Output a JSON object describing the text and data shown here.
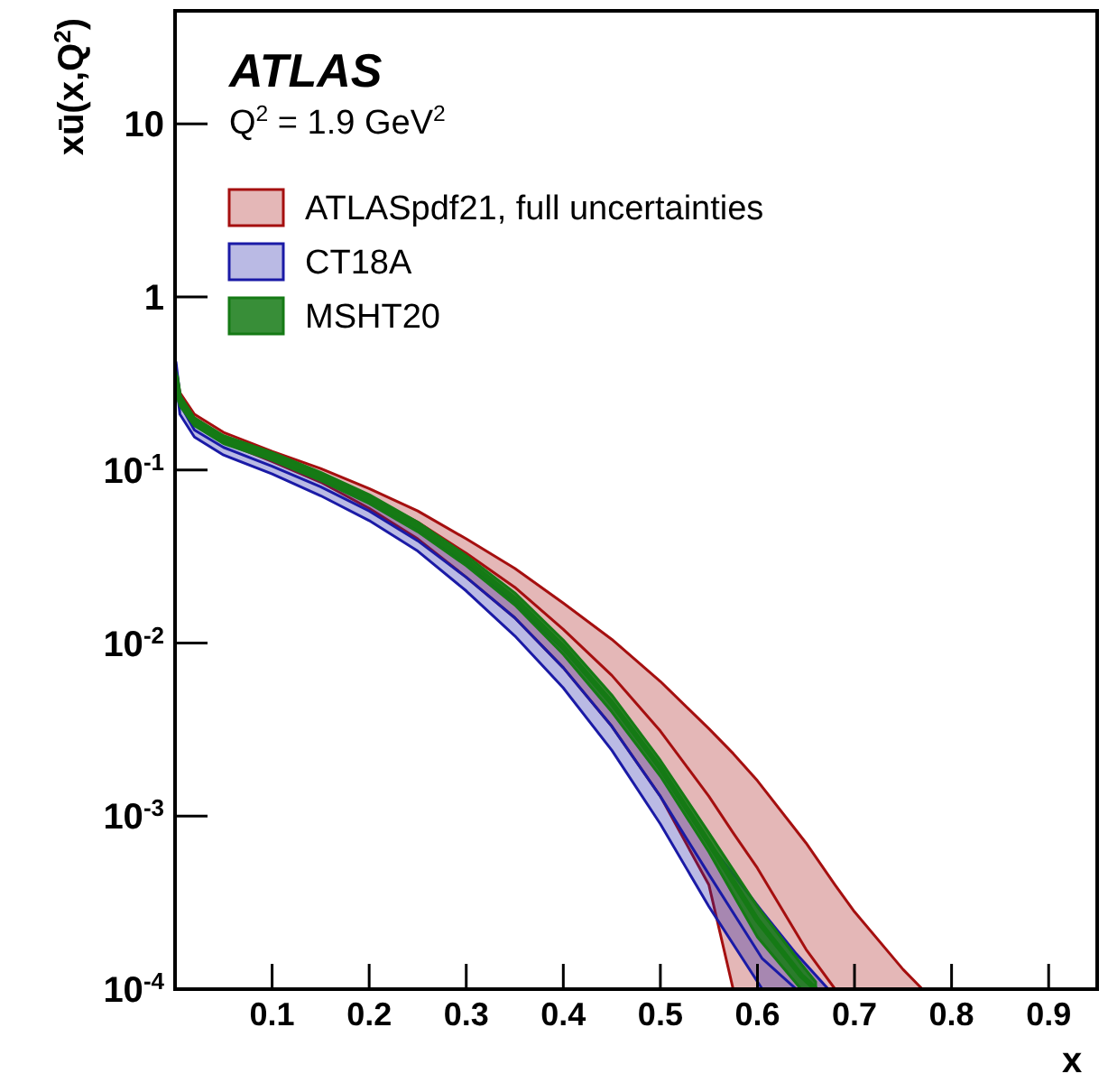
{
  "chart_data": {
    "type": "line",
    "xlabel": "x",
    "ylabel": "xū(x,Q$^{2}$)",
    "annotations": [
      "ATLAS",
      "Q$^{2}$ = 1.9 GeV$^{2}$"
    ],
    "xlim": [
      0,
      0.95
    ],
    "ylim": [
      0.0001,
      45
    ],
    "log": "y",
    "grid": false,
    "legend": "top left",
    "xticks": [
      0.1,
      0.2,
      0.3,
      0.4,
      0.5,
      0.6,
      0.7,
      0.8,
      0.9
    ],
    "yticks": [
      {
        "value": 0.0001,
        "label": "10$^{-4}$"
      },
      {
        "value": 0.001,
        "label": "10$^{-3}$"
      },
      {
        "value": 0.01,
        "label": "10$^{-2}$"
      },
      {
        "value": 0.1,
        "label": "10$^{-1}$"
      },
      1,
      10
    ],
    "series": [
      {
        "name": "ATLASpdf21, full uncertainties",
        "color": "#a50f0f",
        "x": [
          0.001,
          0.005,
          0.02,
          0.05,
          0.1,
          0.15,
          0.2,
          0.25,
          0.3,
          0.35,
          0.4,
          0.45,
          0.5,
          0.55,
          0.575,
          0.6,
          0.65,
          0.68,
          0.7,
          0.75,
          0.77
        ],
        "values": [
          0.36,
          0.26,
          0.2,
          0.155,
          0.12,
          0.095,
          0.07,
          0.05,
          0.033,
          0.021,
          0.012,
          0.0065,
          0.0031,
          0.0013,
          0.0008,
          0.0005,
          0.00017,
          0.0001,
          null,
          null,
          null
        ],
        "upper": [
          0.38,
          0.28,
          0.21,
          0.165,
          0.128,
          0.102,
          0.078,
          0.058,
          0.04,
          0.027,
          0.017,
          0.0105,
          0.006,
          0.0032,
          0.0023,
          0.0016,
          0.0007,
          0.0004,
          0.00028,
          0.00013,
          0.0001
        ],
        "lower": [
          0.34,
          0.24,
          0.19,
          0.145,
          0.112,
          0.085,
          0.06,
          0.04,
          0.024,
          0.014,
          0.0072,
          0.0033,
          0.0013,
          0.0004,
          0.0001,
          0.0001,
          0.0001,
          0.0001,
          0.0001,
          0.0001,
          0.0001
        ]
      },
      {
        "name": "CT18A",
        "color": "#1a1aa6",
        "x": [
          0.001,
          0.005,
          0.02,
          0.05,
          0.1,
          0.15,
          0.2,
          0.25,
          0.3,
          0.35,
          0.4,
          0.45,
          0.5,
          0.55,
          0.605,
          0.64,
          0.673
        ],
        "values": [
          0.38,
          0.24,
          0.17,
          0.135,
          0.105,
          0.08,
          0.058,
          0.039,
          0.024,
          0.014,
          0.0072,
          0.0033,
          0.0013,
          0.00046,
          0.00015,
          0.0001,
          null
        ],
        "upper": [
          0.42,
          0.27,
          0.19,
          0.15,
          0.117,
          0.09,
          0.066,
          0.045,
          0.029,
          0.017,
          0.0092,
          0.0045,
          0.0019,
          0.0007,
          0.00028,
          0.00016,
          0.0001
        ],
        "lower": [
          0.34,
          0.21,
          0.155,
          0.122,
          0.095,
          0.071,
          0.051,
          0.034,
          0.02,
          0.011,
          0.0055,
          0.0024,
          0.0009,
          0.0003,
          0.0001,
          0.0001,
          0.0001
        ]
      },
      {
        "name": "MSHT20",
        "color": "#157a15",
        "x": [
          0.001,
          0.005,
          0.02,
          0.05,
          0.1,
          0.15,
          0.2,
          0.25,
          0.3,
          0.35,
          0.4,
          0.45,
          0.5,
          0.55,
          0.6,
          0.645,
          0.66
        ],
        "values": [
          0.35,
          0.25,
          0.19,
          0.15,
          0.12,
          0.092,
          0.068,
          0.047,
          0.03,
          0.018,
          0.0095,
          0.0045,
          0.0019,
          0.0007,
          0.00025,
          0.00012,
          0.0001
        ],
        "upper": [
          0.37,
          0.27,
          0.2,
          0.158,
          0.126,
          0.097,
          0.072,
          0.05,
          0.032,
          0.0195,
          0.0104,
          0.005,
          0.0021,
          0.0008,
          0.0003,
          0.00014,
          0.00011
        ],
        "lower": [
          0.33,
          0.235,
          0.18,
          0.142,
          0.114,
          0.087,
          0.064,
          0.044,
          0.028,
          0.0166,
          0.0086,
          0.004,
          0.0017,
          0.00062,
          0.0002,
          0.0001,
          0.0001
        ]
      }
    ]
  }
}
